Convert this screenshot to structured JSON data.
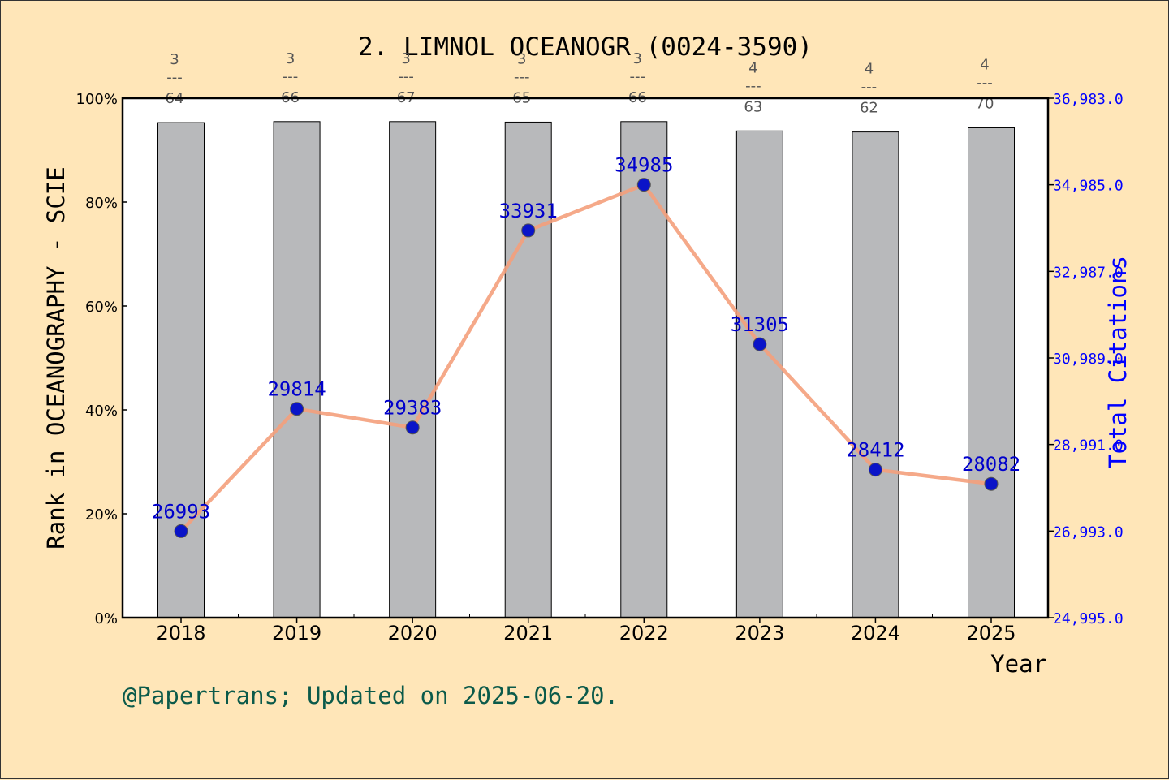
{
  "chart_data": {
    "type": "bar",
    "title": "2. LIMNOL OCEANOGR (0024-3590)",
    "xlabel": "Year",
    "ylabel_left": "Rank in OCEANOGRAPHY - SCIE",
    "ylabel_right": "Total Citations",
    "categories": [
      "2018",
      "2019",
      "2020",
      "2021",
      "2022",
      "2023",
      "2024",
      "2025"
    ],
    "left_axis": {
      "ylim": [
        0,
        100
      ],
      "ticks": [
        0,
        20,
        40,
        60,
        80,
        100
      ],
      "tick_labels": [
        "0%",
        "20%",
        "40%",
        "60%",
        "80%",
        "100%"
      ]
    },
    "right_axis": {
      "ylim": [
        24995.0,
        36983.0
      ],
      "ticks": [
        24995.0,
        26993.0,
        28991.0,
        30989.0,
        32987.0,
        34985.0,
        36983.0
      ],
      "tick_labels": [
        "24,995.0",
        "26,993.0",
        "28,991.0",
        "30,989.0",
        "32,987.0",
        "34,985.0",
        "36,983.0"
      ]
    },
    "series": [
      {
        "type": "bar",
        "axis": "left",
        "values": [
          95.3,
          95.5,
          95.5,
          95.4,
          95.5,
          93.7,
          93.5,
          94.3
        ],
        "rank_labels": [
          {
            "rank": "3",
            "total": "64"
          },
          {
            "rank": "3",
            "total": "66"
          },
          {
            "rank": "3",
            "total": "67"
          },
          {
            "rank": "3",
            "total": "65"
          },
          {
            "rank": "3",
            "total": "66"
          },
          {
            "rank": "4",
            "total": "63"
          },
          {
            "rank": "4",
            "total": "62"
          },
          {
            "rank": "4",
            "total": "70"
          }
        ],
        "fraction_bar": "---",
        "color": "#b8b9bb"
      },
      {
        "type": "line",
        "axis": "right",
        "values": [
          26993,
          29814,
          29383,
          33931,
          34985,
          31305,
          28412,
          28082
        ],
        "labels": [
          "26993",
          "29814",
          "29383",
          "33931",
          "34985",
          "31305",
          "28412",
          "28082"
        ],
        "line_color": "#f4a07c",
        "marker_color": "#0a14c8",
        "label_color": "#0000cc"
      }
    ],
    "grid": false,
    "legend": "none"
  },
  "footer": {
    "credit": "@Papertrans; Updated on 2025-06-20."
  },
  "colors": {
    "background": "#ffe6b8",
    "plot_bg": "#ffffff",
    "right_axis": "#0000ff",
    "footer_text": "#0b5a4a",
    "rank_text": "#555555"
  }
}
